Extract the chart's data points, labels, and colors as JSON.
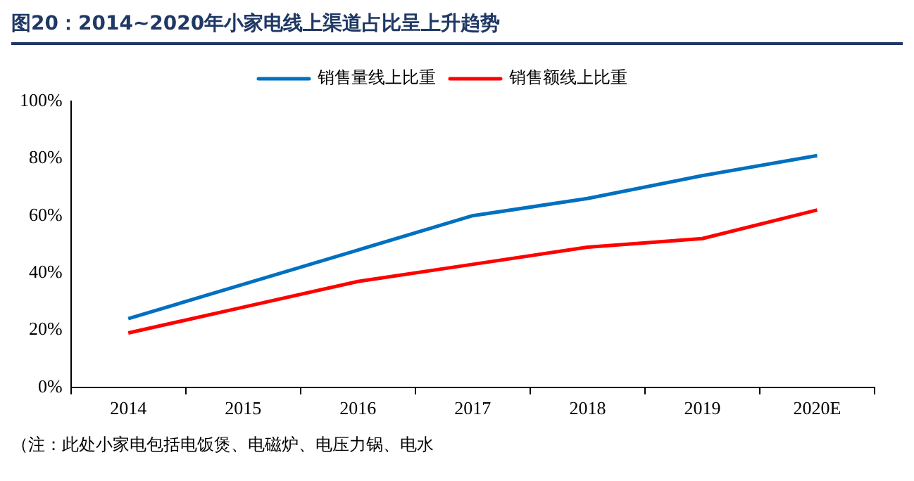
{
  "chart_data": {
    "type": "line",
    "title": "图20：2014~2020年小家电线上渠道占比呈上升趋势",
    "categories": [
      "2014",
      "2015",
      "2016",
      "2017",
      "2018",
      "2019",
      "2020E"
    ],
    "series": [
      {
        "name": "销售量线上比重",
        "color": "#0070c0",
        "values": [
          24,
          36,
          48,
          60,
          66,
          74,
          81
        ]
      },
      {
        "name": "销售额线上比重",
        "color": "#ff0000",
        "values": [
          19,
          28,
          37,
          43,
          49,
          52,
          62
        ]
      }
    ],
    "ylim": [
      0,
      100
    ],
    "yticks": [
      {
        "value": 0,
        "label": "0%"
      },
      {
        "value": 20,
        "label": "20%"
      },
      {
        "value": 40,
        "label": "40%"
      },
      {
        "value": 60,
        "label": "60%"
      },
      {
        "value": 80,
        "label": "80%"
      },
      {
        "value": 100,
        "label": "100%"
      }
    ],
    "grid": false,
    "legend": "top",
    "marker": "none",
    "line_style": "solid",
    "annotations": [
      "（注：此处小家电包括电饭煲、电磁炉、电压力锅、电水"
    ]
  }
}
